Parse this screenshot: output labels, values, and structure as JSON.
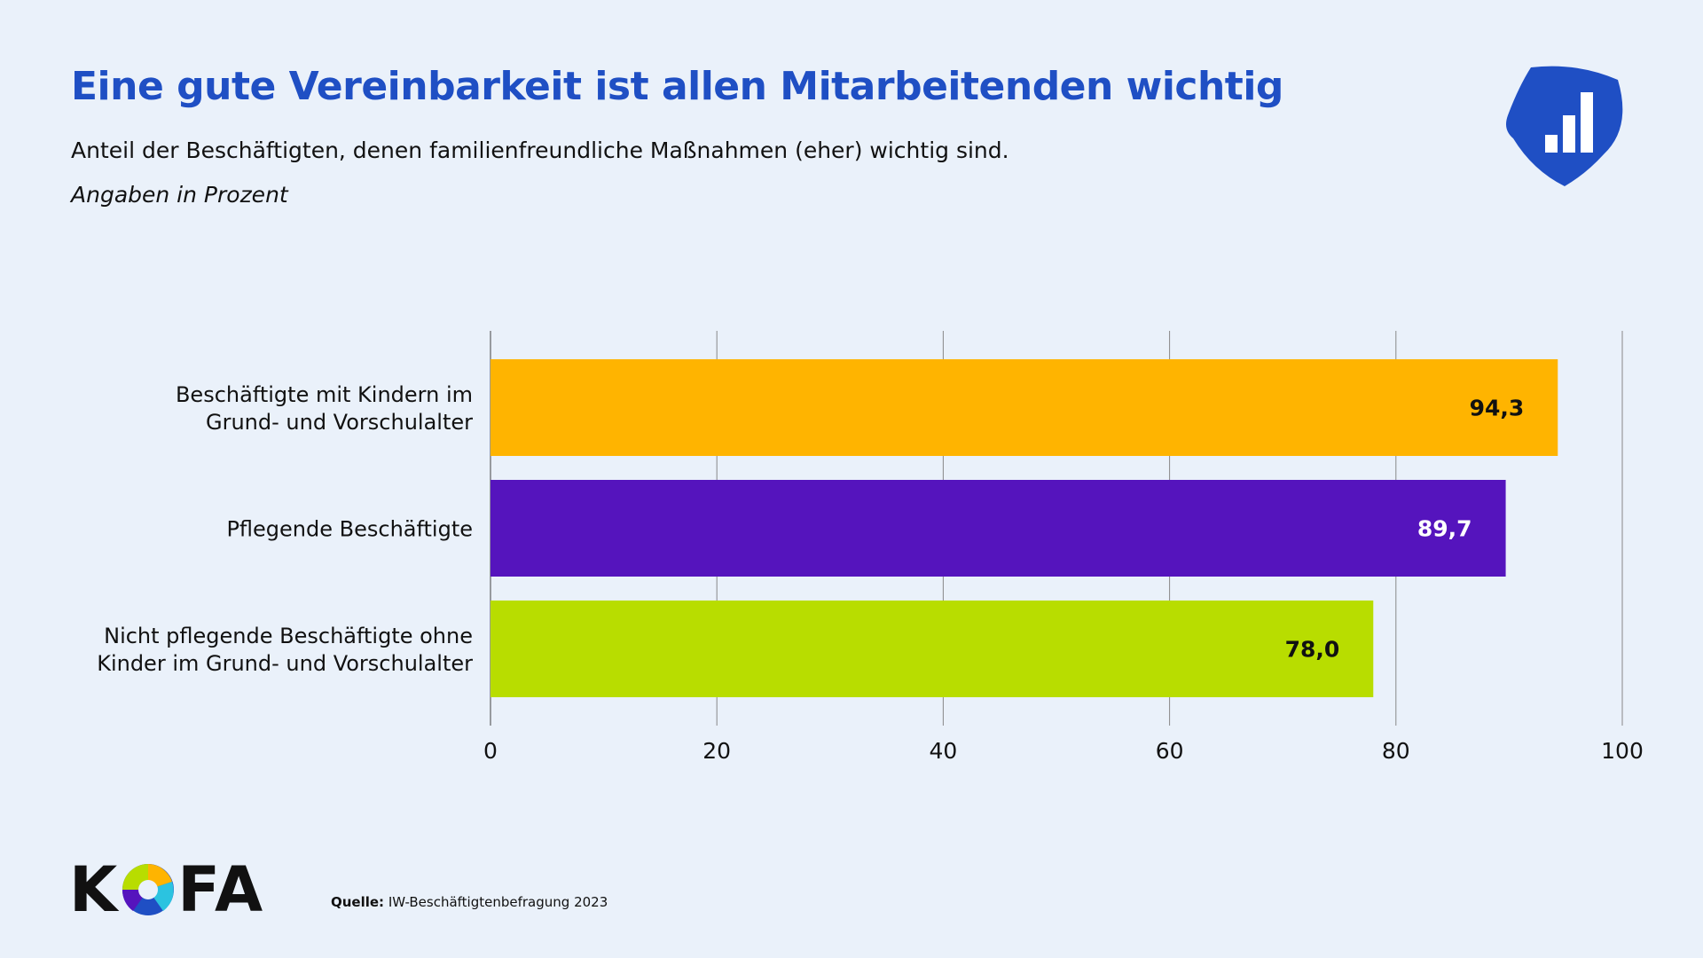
{
  "header": {
    "title": "Eine gute Vereinbarkeit ist allen Mitarbeitenden wichtig",
    "subtitle": "Anteil der Beschäftigten, denen familienfreundliche Maßnahmen (eher) wichtig sind.",
    "unit": "Angaben in Prozent"
  },
  "footer": {
    "source_label": "Quelle:",
    "source_text": "IW-Beschäftigtenbefragung 2023",
    "logo_text": "KOFA",
    "badge_icon": "bar-chart-shield-icon"
  },
  "chart_data": {
    "type": "bar",
    "orientation": "horizontal",
    "categories": [
      "Beschäftigte mit Kindern im\nGrund- und Vorschulalter",
      "Pflegende Beschäftigte",
      "Nicht pflegende Beschäftigte ohne\nKinder im Grund- und Vorschulalter"
    ],
    "values": [
      94.3,
      89.7,
      78.0
    ],
    "data_labels": [
      "94,3",
      "89,7",
      "78,0"
    ],
    "colors": [
      "#ffb400",
      "#5514bd",
      "#b8dd00"
    ],
    "label_colors": [
      "#111111",
      "#ffffff",
      "#111111"
    ],
    "xlim": [
      0,
      100
    ],
    "xticks": [
      "0",
      "20",
      "40",
      "60",
      "80",
      "100"
    ],
    "grid": "vertical"
  }
}
